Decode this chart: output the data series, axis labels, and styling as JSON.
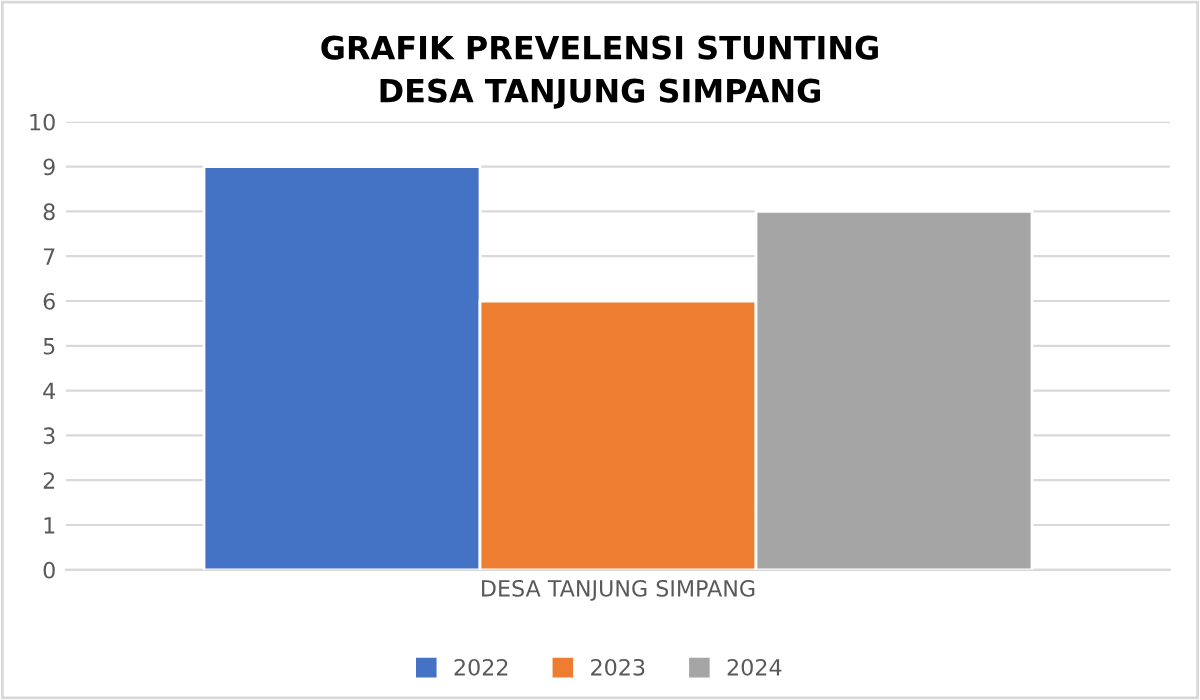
{
  "chart_data": {
    "type": "bar",
    "title": "GRAFIK PREVELENSI STUNTING\nDESA TANJUNG SIMPANG",
    "categories": [
      "DESA TANJUNG SIMPANG"
    ],
    "series": [
      {
        "name": "2022",
        "color": "#4472c4",
        "values": [
          9
        ]
      },
      {
        "name": "2023",
        "color": "#ed7d31",
        "values": [
          6
        ]
      },
      {
        "name": "2024",
        "color": "#a5a5a5",
        "values": [
          8
        ]
      }
    ],
    "ylim": [
      0,
      10
    ],
    "yticks": [
      0,
      1,
      2,
      3,
      4,
      5,
      6,
      7,
      8,
      9,
      10
    ],
    "grid": "y",
    "legend": "bottom"
  }
}
